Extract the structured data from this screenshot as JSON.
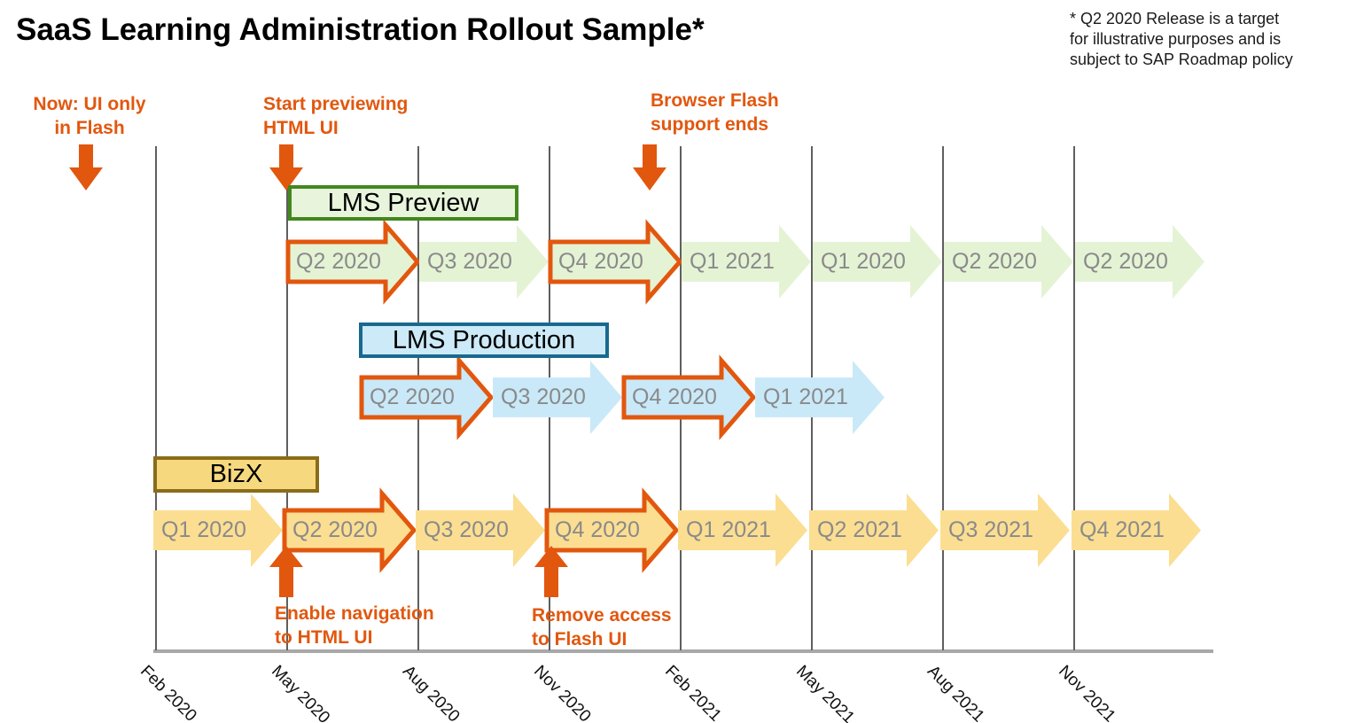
{
  "title": "SaaS Learning Administration Rollout Sample*",
  "disclaimer": "* Q2 2020 Release is a target\nfor illustrative purposes and is\nsubject to SAP Roadmap policy",
  "colors": {
    "accent_orange": "#E2570E",
    "green_fill": "#E5F3D5",
    "green_box_fill": "#E8F5DC",
    "green_border": "#43871F",
    "blue_fill": "#C9E9F8",
    "blue_box_fill": "#CCEAF8",
    "blue_border": "#19698E",
    "yellow_fill": "#FBDE92",
    "yellow_box_fill": "#F6D97E",
    "yellow_border": "#8A6D1A",
    "arrow_text": "#8A8A8A",
    "gridline": "#5F5F5F",
    "axis_line": "#A8A8A8"
  },
  "timeline": {
    "axis_labels": [
      "Feb 2020",
      "May 2020",
      "Aug 2020",
      "Nov 2020",
      "Feb 2021",
      "May 2021",
      "Aug 2021",
      "Nov 2021"
    ]
  },
  "rows": [
    {
      "id": "lms-preview",
      "label": "LMS Preview",
      "theme": "green",
      "arrows": [
        {
          "label": "Q2 2020",
          "highlighted": true
        },
        {
          "label": "Q3 2020",
          "highlighted": false
        },
        {
          "label": "Q4 2020",
          "highlighted": true
        },
        {
          "label": "Q1 2021",
          "highlighted": false
        },
        {
          "label": "Q1 2020",
          "highlighted": false
        },
        {
          "label": "Q2 2020",
          "highlighted": false
        },
        {
          "label": "Q2 2020",
          "highlighted": false
        }
      ]
    },
    {
      "id": "lms-production",
      "label": "LMS Production",
      "theme": "blue",
      "arrows": [
        {
          "label": "Q2 2020",
          "highlighted": true
        },
        {
          "label": "Q3 2020",
          "highlighted": false
        },
        {
          "label": "Q4 2020",
          "highlighted": true
        },
        {
          "label": "Q1 2021",
          "highlighted": false
        }
      ]
    },
    {
      "id": "bizx",
      "label": "BizX",
      "theme": "yellow",
      "arrows": [
        {
          "label": "Q1 2020",
          "highlighted": false
        },
        {
          "label": "Q2 2020",
          "highlighted": true
        },
        {
          "label": "Q3 2020",
          "highlighted": false
        },
        {
          "label": "Q4 2020",
          "highlighted": true
        },
        {
          "label": "Q1 2021",
          "highlighted": false
        },
        {
          "label": "Q2 2021",
          "highlighted": false
        },
        {
          "label": "Q3 2021",
          "highlighted": false
        },
        {
          "label": "Q4 2021",
          "highlighted": false
        }
      ]
    }
  ],
  "annotations": [
    {
      "id": "now-flash",
      "text": "Now: UI only\nin Flash",
      "marker": "down"
    },
    {
      "id": "start-previewing",
      "text": "Start previewing\nHTML UI",
      "marker": "down"
    },
    {
      "id": "browser-flash-ends",
      "text": "Browser Flash\nsupport ends",
      "marker": "down"
    },
    {
      "id": "enable-navigation",
      "text": "Enable navigation\nto HTML UI",
      "marker": "up"
    },
    {
      "id": "remove-access",
      "text": "Remove access\nto Flash UI",
      "marker": "up"
    }
  ]
}
